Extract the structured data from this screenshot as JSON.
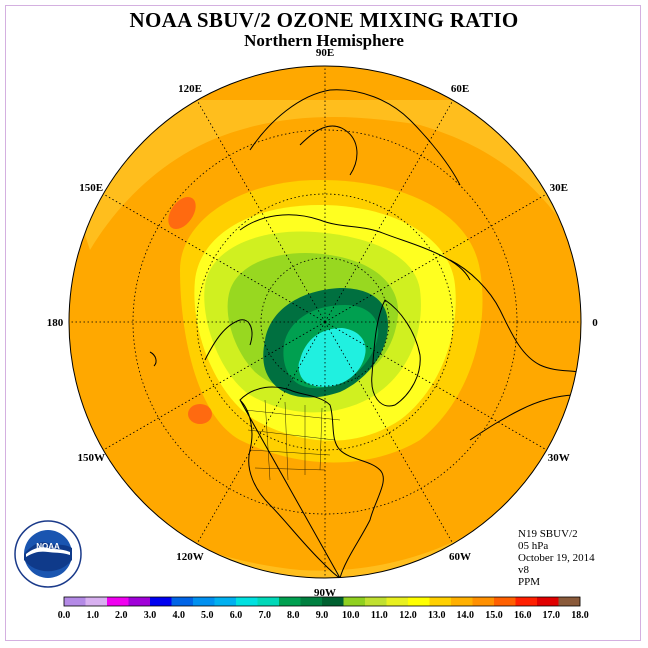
{
  "title": "NOAA SBUV/2 OZONE MIXING RATIO",
  "subtitle": "Northern Hemisphere",
  "longitude_labels": [
    {
      "text": "90E",
      "lon": 90
    },
    {
      "text": "60E",
      "lon": 60
    },
    {
      "text": "30E",
      "lon": 30
    },
    {
      "text": "0",
      "lon": 0
    },
    {
      "text": "30W",
      "lon": -30
    },
    {
      "text": "60W",
      "lon": -60
    },
    {
      "text": "90W",
      "lon": -90
    },
    {
      "text": "120W",
      "lon": -120
    },
    {
      "text": "150W",
      "lon": -150
    },
    {
      "text": "180",
      "lon": 180
    },
    {
      "text": "150E",
      "lon": 150
    },
    {
      "text": "120E",
      "lon": 120
    }
  ],
  "info": {
    "satellite": "N19 SBUV/2",
    "level": "05 hPa",
    "date": "October 19, 2014",
    "version": "v8",
    "units": "PPM"
  },
  "colorbar": {
    "colors": [
      "#b48ae6",
      "#d8b0f0",
      "#f000f0",
      "#a000d8",
      "#0000f0",
      "#0064e6",
      "#0090f0",
      "#00b0f0",
      "#00e0e0",
      "#00d8b8",
      "#00a050",
      "#008040",
      "#006030",
      "#90d020",
      "#c0e030",
      "#e8f020",
      "#ffff00",
      "#ffd000",
      "#ffb000",
      "#ff9000",
      "#ff6000",
      "#ff2000",
      "#e00000",
      "#8a5a3a"
    ],
    "ticks": [
      "0.0",
      "1.0",
      "2.0",
      "3.0",
      "4.0",
      "5.0",
      "6.0",
      "7.0",
      "8.0",
      "9.0",
      "10.0",
      "11.0",
      "12.0",
      "13.0",
      "14.0",
      "15.0",
      "16.0",
      "17.0",
      "18.0"
    ]
  },
  "logo_text": "NOAA"
}
